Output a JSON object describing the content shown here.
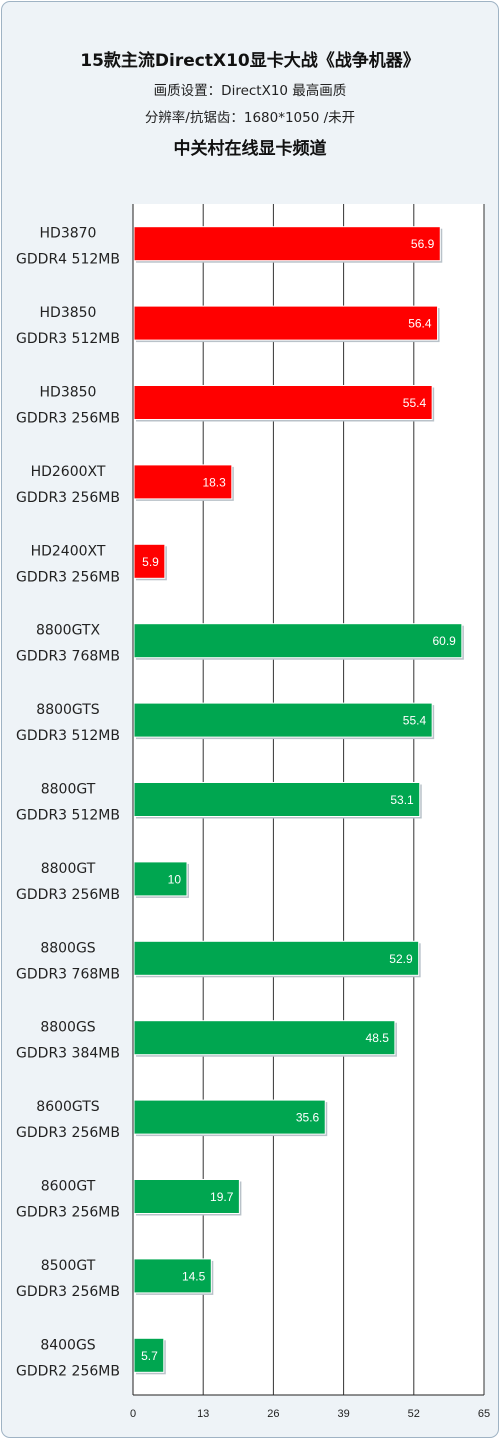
{
  "header": {
    "title": "15款主流DirectX10显卡大战《战争机器》",
    "subtitle1": "画质设置：DirectX10 最高画质",
    "subtitle2": "分辨率/抗锯齿：1680*1050 /未开",
    "subtitle3": "中关村在线显卡频道"
  },
  "chart_data": {
    "type": "bar",
    "orientation": "horizontal",
    "categories": [
      [
        "HD3870",
        "GDDR4 512MB"
      ],
      [
        "HD3850",
        "GDDR3 512MB"
      ],
      [
        "HD3850",
        "GDDR3 256MB"
      ],
      [
        "HD2600XT",
        "GDDR3 256MB"
      ],
      [
        "HD2400XT",
        "GDDR3 256MB"
      ],
      [
        "8800GTX",
        "GDDR3 768MB"
      ],
      [
        "8800GTS",
        "GDDR3 512MB"
      ],
      [
        "8800GT",
        "GDDR3 512MB"
      ],
      [
        "8800GT",
        "GDDR3 256MB"
      ],
      [
        "8800GS",
        "GDDR3 768MB"
      ],
      [
        "8800GS",
        "GDDR3 384MB"
      ],
      [
        "8600GTS",
        "GDDR3 256MB"
      ],
      [
        "8600GT",
        "GDDR3 256MB"
      ],
      [
        "8500GT",
        "GDDR3 256MB"
      ],
      [
        "8400GS",
        "GDDR2 256MB"
      ]
    ],
    "values": [
      56.9,
      56.4,
      55.4,
      18.3,
      5.9,
      60.9,
      55.4,
      53.1,
      10,
      52.9,
      48.5,
      35.6,
      19.7,
      14.5,
      5.7
    ],
    "value_labels": [
      "56.9",
      "56.4",
      "55.4",
      "18.3",
      "5.9",
      "60.9",
      "55.4",
      "53.1",
      "10",
      "52.9",
      "48.5",
      "35.6",
      "19.7",
      "14.5",
      "5.7"
    ],
    "bar_colors": [
      "#ff0000",
      "#ff0000",
      "#ff0000",
      "#ff0000",
      "#ff0000",
      "#00a650",
      "#00a650",
      "#00a650",
      "#00a650",
      "#00a650",
      "#00a650",
      "#00a650",
      "#00a650",
      "#00a650",
      "#00a650"
    ],
    "xlim": [
      0,
      65
    ],
    "xticks": [
      0,
      13,
      26,
      39,
      52,
      65
    ],
    "xtick_labels": [
      "0",
      "13",
      "26",
      "39",
      "52",
      "65"
    ],
    "grid": true,
    "plot_background": "#ffffff",
    "grid_color": "#333333"
  }
}
